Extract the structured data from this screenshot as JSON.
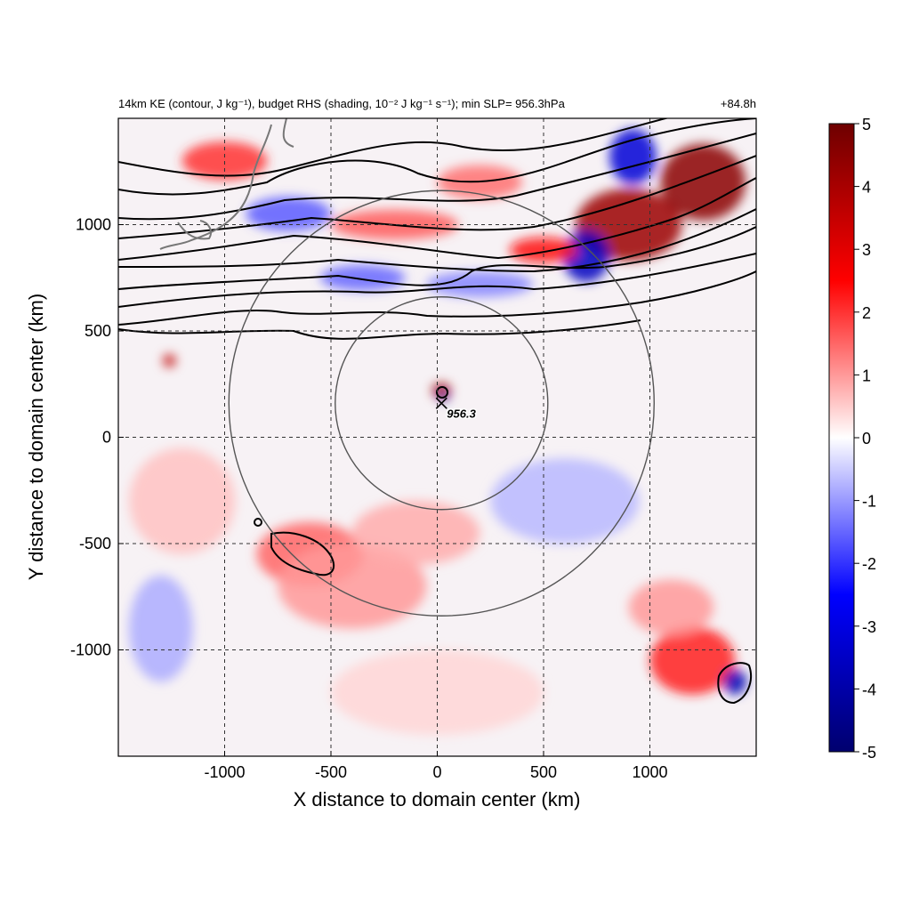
{
  "chart_data": {
    "type": "heatmap",
    "title_left": "14km KE (contour, J kg⁻¹), budget RHS (shading, 10⁻² J kg⁻¹ s⁻¹); min SLP= 956.3hPa",
    "title_right": "+84.8h",
    "xlabel": "X distance to domain center (km)",
    "ylabel": "Y distance to domain center (km)",
    "xlim": [
      -1500,
      1500
    ],
    "ylim": [
      -1500,
      1500
    ],
    "xticks": [
      -1000,
      -500,
      0,
      500,
      1000
    ],
    "yticks": [
      -1000,
      -500,
      0,
      500,
      1000
    ],
    "grid": "dashed",
    "colorbar": {
      "min": -5,
      "max": 5,
      "ticks": [
        5,
        4,
        3,
        2,
        1,
        0,
        -1,
        -2,
        -3,
        -4,
        -5
      ],
      "colors": [
        "#00006e",
        "#0000ff",
        "#ffffff",
        "#ff0000",
        "#6e0000"
      ]
    },
    "center_marker": {
      "x": 20,
      "y": 160,
      "label": "956.3"
    },
    "range_circles": [
      {
        "cx": 20,
        "cy": 160,
        "r": 500
      },
      {
        "cx": 20,
        "cy": 160,
        "r": 1000
      }
    ],
    "shading_features": [
      {
        "x": 900,
        "y": 1000,
        "value": 4.2,
        "sx": 250,
        "sy": 170
      },
      {
        "x": 1250,
        "y": 1200,
        "value": 4.5,
        "sx": 200,
        "sy": 180
      },
      {
        "x": 700,
        "y": 850,
        "value": -3.6,
        "sx": 110,
        "sy": 120
      },
      {
        "x": 920,
        "y": 1320,
        "value": -3.2,
        "sx": 110,
        "sy": 130
      },
      {
        "x": 500,
        "y": 880,
        "value": 2.4,
        "sx": 160,
        "sy": 60
      },
      {
        "x": -1000,
        "y": 1300,
        "value": 2.0,
        "sx": 200,
        "sy": 90
      },
      {
        "x": -700,
        "y": 1050,
        "value": -1.6,
        "sx": 200,
        "sy": 80
      },
      {
        "x": -200,
        "y": 1000,
        "value": 1.6,
        "sx": 300,
        "sy": 70
      },
      {
        "x": 200,
        "y": 1200,
        "value": 1.4,
        "sx": 200,
        "sy": 80
      },
      {
        "x": -350,
        "y": 750,
        "value": -1.5,
        "sx": 200,
        "sy": 60
      },
      {
        "x": 200,
        "y": 720,
        "value": -1.2,
        "sx": 250,
        "sy": 60
      },
      {
        "x": -1260,
        "y": 360,
        "value": 3.6,
        "sx": 30,
        "sy": 30
      },
      {
        "x": 20,
        "y": 220,
        "value": 4.2,
        "sx": 45,
        "sy": 35
      },
      {
        "x": 30,
        "y": 190,
        "value": -4.5,
        "sx": 25,
        "sy": 20
      },
      {
        "x": -600,
        "y": -550,
        "value": 1.5,
        "sx": 250,
        "sy": 150
      },
      {
        "x": -400,
        "y": -700,
        "value": 1.0,
        "sx": 350,
        "sy": 200
      },
      {
        "x": -1200,
        "y": -300,
        "value": 0.6,
        "sx": 250,
        "sy": 250
      },
      {
        "x": -1300,
        "y": -900,
        "value": -0.8,
        "sx": 150,
        "sy": 250
      },
      {
        "x": 600,
        "y": -300,
        "value": -0.7,
        "sx": 350,
        "sy": 200
      },
      {
        "x": 1200,
        "y": -1050,
        "value": 2.2,
        "sx": 200,
        "sy": 160
      },
      {
        "x": 1400,
        "y": -1150,
        "value": -3.8,
        "sx": 55,
        "sy": 60
      },
      {
        "x": 1100,
        "y": -800,
        "value": 1.0,
        "sx": 200,
        "sy": 130
      },
      {
        "x": 0,
        "y": -1200,
        "value": 0.4,
        "sx": 500,
        "sy": 200
      },
      {
        "x": -100,
        "y": -450,
        "value": 0.8,
        "sx": 300,
        "sy": 150
      }
    ]
  }
}
